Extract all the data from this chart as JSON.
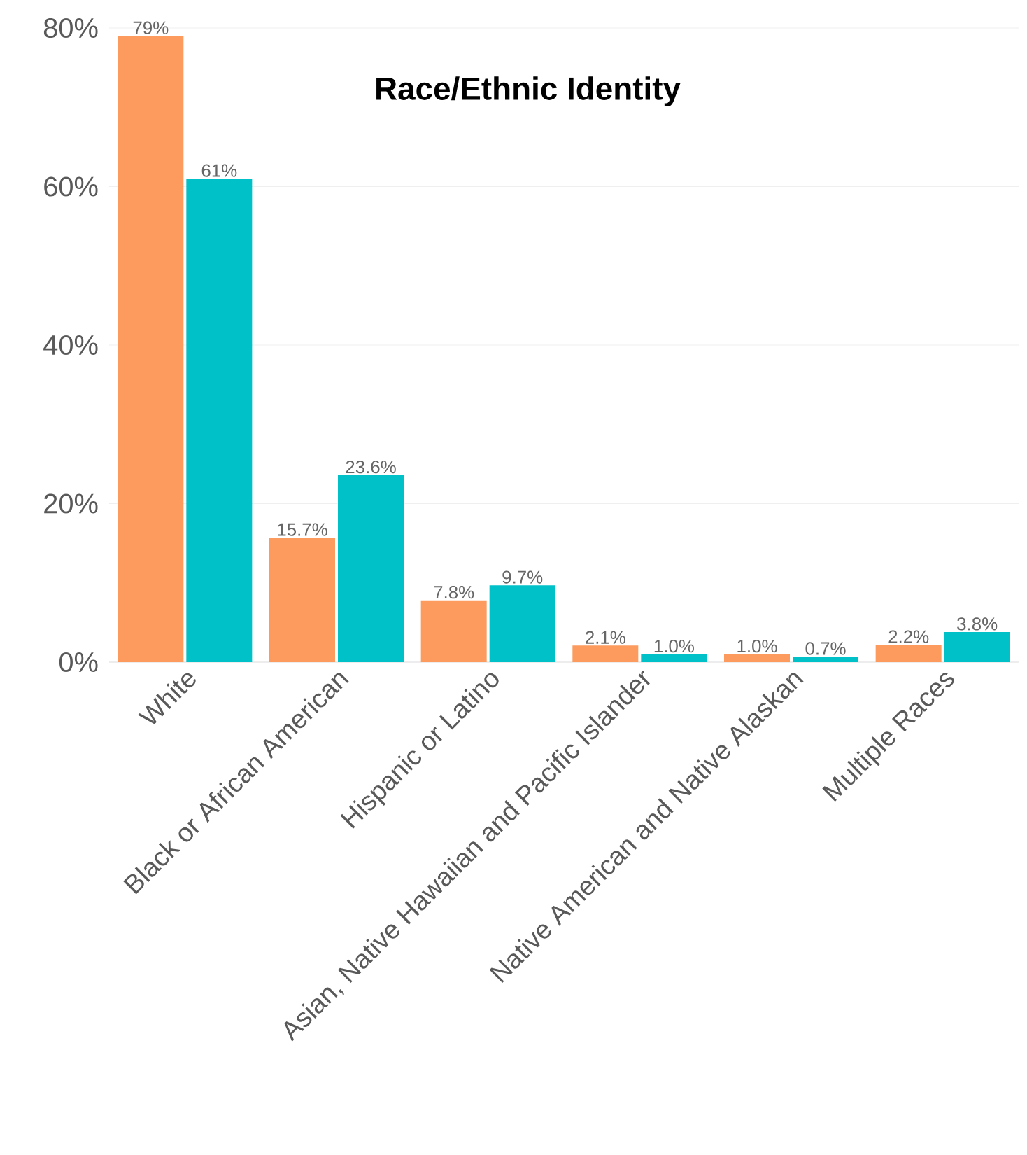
{
  "chart_data": {
    "type": "bar",
    "title": "Race/Ethnic Identity",
    "categories": [
      "White",
      "Black or African American",
      "Hispanic or Latino",
      "Asian, Native Hawaiian and Pacific Islander",
      "Native American and Native Alaskan",
      "Multiple Races"
    ],
    "series": [
      {
        "color": "#fd9a5e",
        "values": [
          79,
          15.7,
          7.8,
          2.1,
          1.0,
          2.2
        ],
        "value_labels": [
          "79%",
          "15.7%",
          "7.8%",
          "2.1%",
          "1.0%",
          "2.2%"
        ]
      },
      {
        "color": "#00c0c8",
        "values": [
          61,
          23.6,
          9.7,
          1.0,
          0.7,
          3.8
        ],
        "value_labels": [
          "61%",
          "23.6%",
          "9.7%",
          "1.0%",
          "0.7%",
          "3.8%"
        ]
      }
    ],
    "ylim": [
      0,
      80
    ],
    "yticks": [
      {
        "value": 0,
        "label": "0%"
      },
      {
        "value": 20,
        "label": "20%"
      },
      {
        "value": 40,
        "label": "40%"
      },
      {
        "value": 60,
        "label": "60%"
      },
      {
        "value": 80,
        "label": "80%"
      }
    ],
    "grid": "y"
  }
}
